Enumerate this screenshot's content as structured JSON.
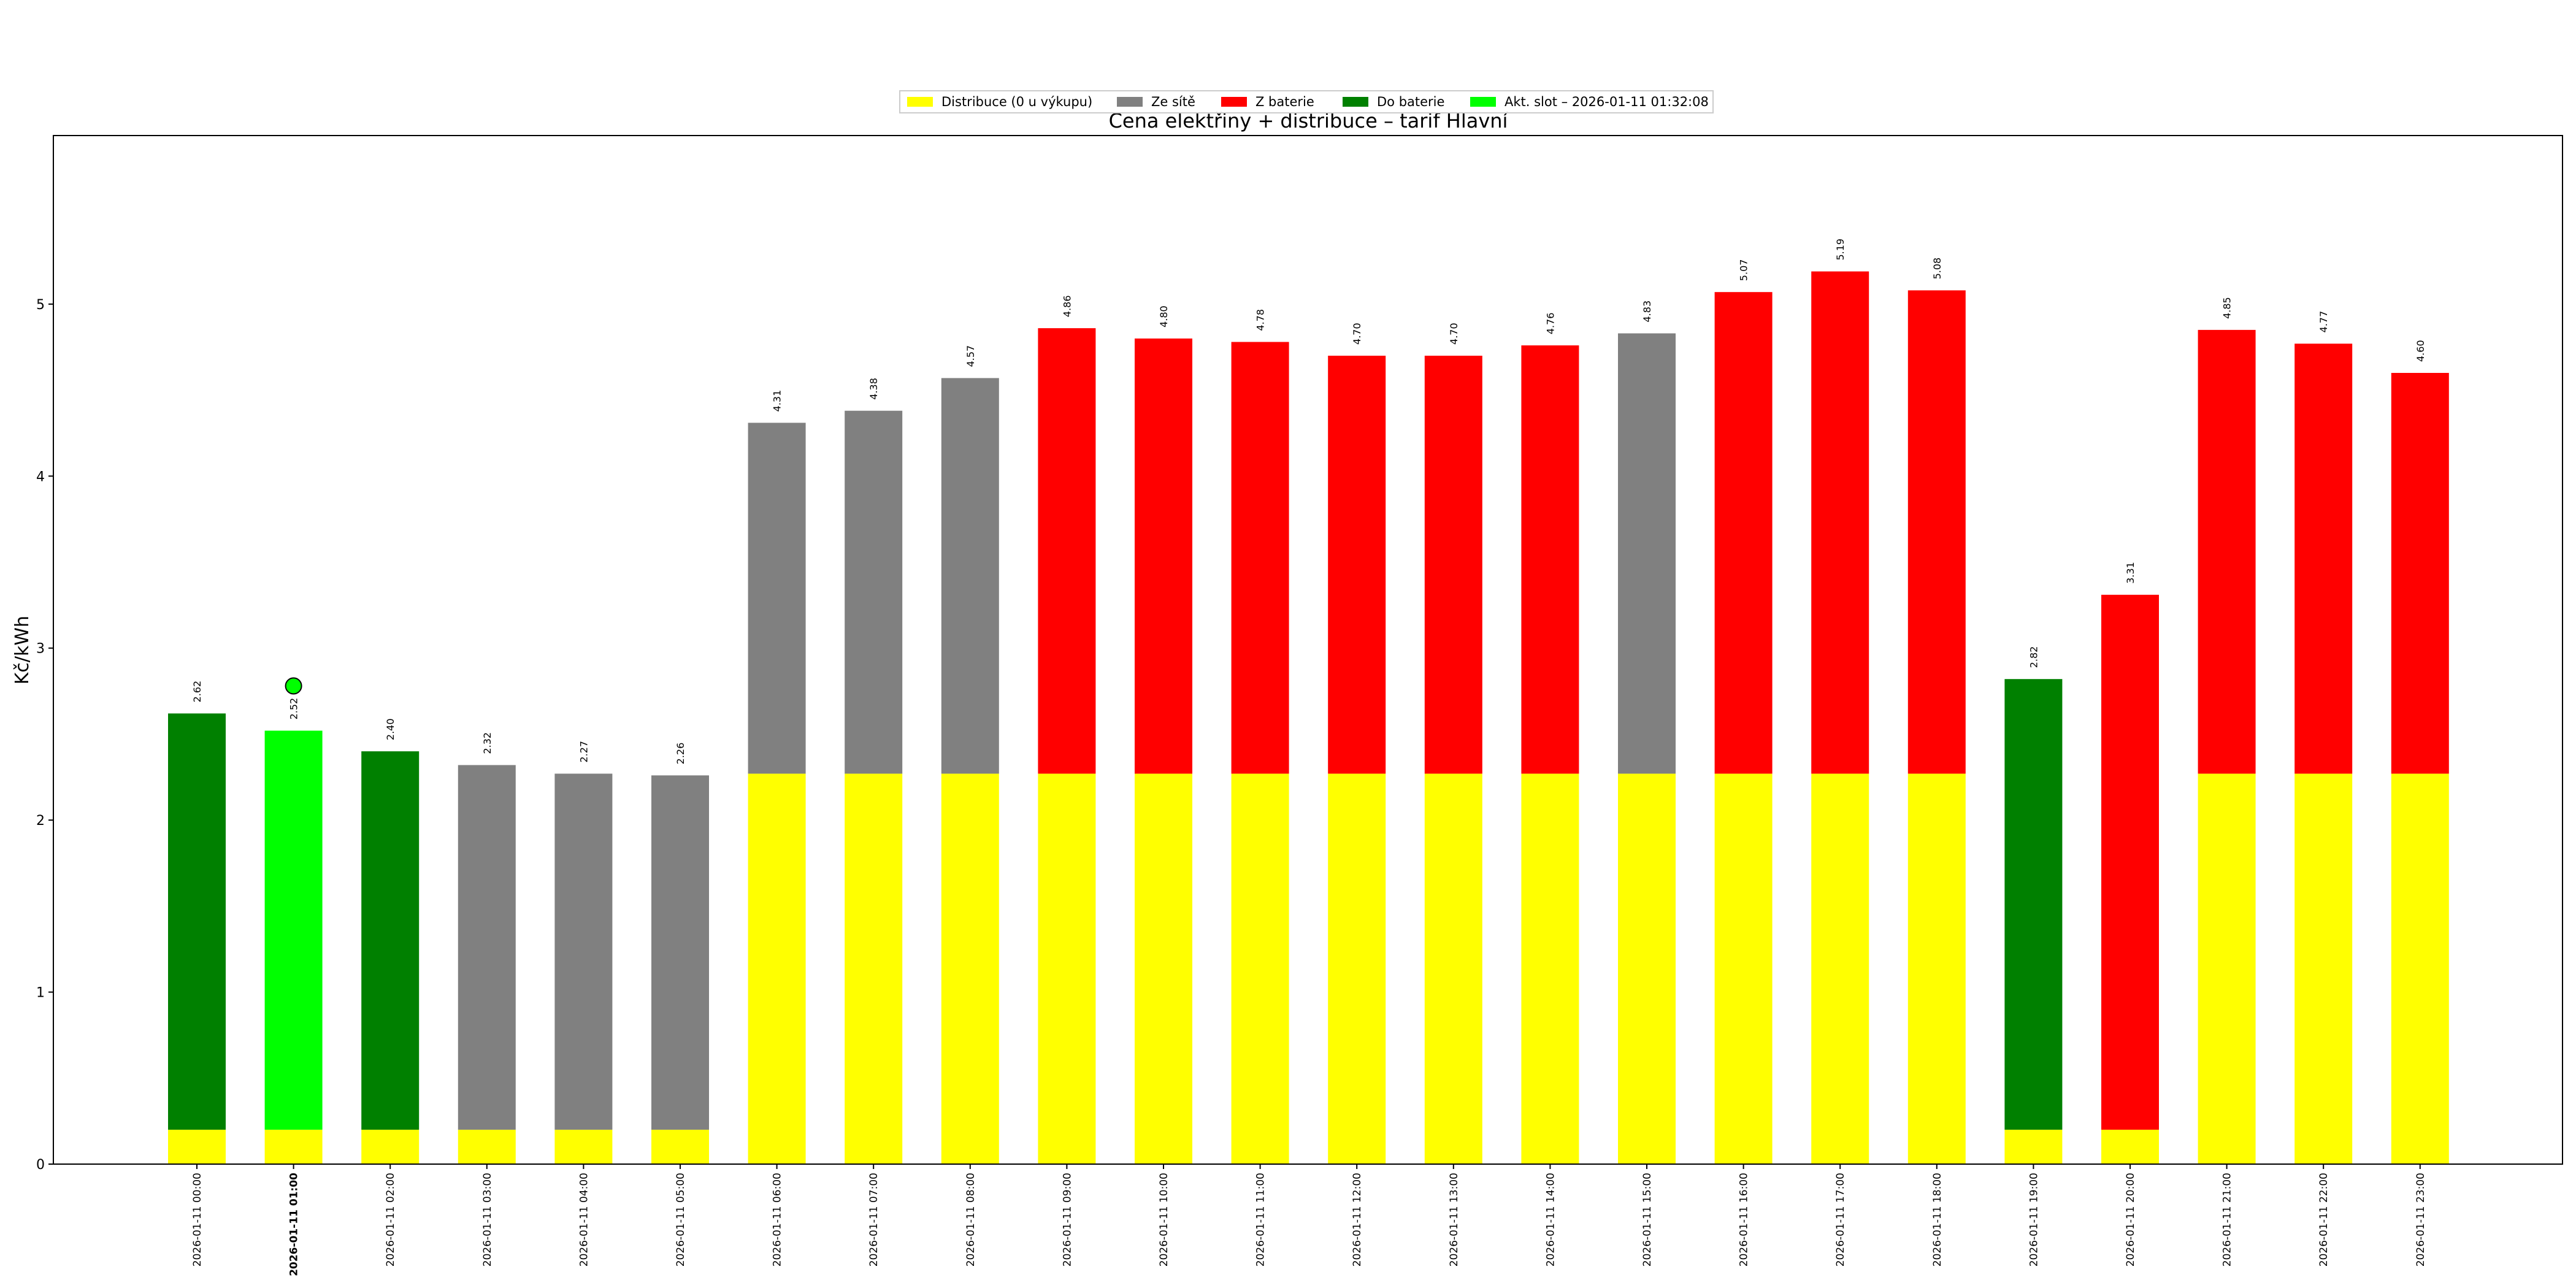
{
  "chart_data": {
    "type": "bar",
    "title": "Cena elektřiny + distribuce – tarif Hlavní",
    "xlabel": "",
    "ylabel": "Kč/kWh",
    "ylim": [
      0,
      5.98
    ],
    "yticks": [
      0,
      1,
      2,
      3,
      4,
      5
    ],
    "grid": false,
    "legend_position": "top-center",
    "colors": {
      "distribuce": "#ffff00",
      "ze_site": "#808080",
      "z_baterie": "#ff0000",
      "do_baterie": "#008000",
      "akt_slot": "#00ff00"
    },
    "legend": [
      {
        "key": "distribuce",
        "label": "Distribuce (0 u výkupu)"
      },
      {
        "key": "ze_site",
        "label": "Ze sítě"
      },
      {
        "key": "z_baterie",
        "label": "Z baterie"
      },
      {
        "key": "do_baterie",
        "label": "Do baterie"
      },
      {
        "key": "akt_slot",
        "label": "Akt. slot – 2026-01-11 01:32:08"
      }
    ],
    "current_slot_index": 1,
    "categories": [
      "2026-01-11 00:00",
      "2026-01-11 01:00",
      "2026-01-11 02:00",
      "2026-01-11 03:00",
      "2026-01-11 04:00",
      "2026-01-11 05:00",
      "2026-01-11 06:00",
      "2026-01-11 07:00",
      "2026-01-11 08:00",
      "2026-01-11 09:00",
      "2026-01-11 10:00",
      "2026-01-11 11:00",
      "2026-01-11 12:00",
      "2026-01-11 13:00",
      "2026-01-11 14:00",
      "2026-01-11 15:00",
      "2026-01-11 16:00",
      "2026-01-11 17:00",
      "2026-01-11 18:00",
      "2026-01-11 19:00",
      "2026-01-11 20:00",
      "2026-01-11 21:00",
      "2026-01-11 22:00",
      "2026-01-11 23:00"
    ],
    "distribution": [
      0.2,
      0.2,
      0.2,
      0.2,
      0.2,
      0.2,
      2.27,
      2.27,
      2.27,
      2.27,
      2.27,
      2.27,
      2.27,
      2.27,
      2.27,
      2.27,
      2.27,
      2.27,
      2.27,
      0.2,
      0.2,
      2.27,
      2.27,
      2.27
    ],
    "totals": [
      2.62,
      2.52,
      2.4,
      2.32,
      2.27,
      2.26,
      4.31,
      4.38,
      4.57,
      4.86,
      4.8,
      4.78,
      4.7,
      4.7,
      4.76,
      4.83,
      5.07,
      5.19,
      5.08,
      2.82,
      3.31,
      4.85,
      4.77,
      4.6
    ],
    "total_labels": [
      "2.62",
      "2.52",
      "2.40",
      "2.32",
      "2.27",
      "2.26",
      "4.31",
      "4.38",
      "4.57",
      "4.86",
      "4.80",
      "4.78",
      "4.70",
      "4.70",
      "4.76",
      "4.83",
      "5.07",
      "5.19",
      "5.08",
      "2.82",
      "3.31",
      "4.85",
      "4.77",
      "4.60"
    ],
    "modes": [
      "do_baterie",
      "akt_slot",
      "do_baterie",
      "ze_site",
      "ze_site",
      "ze_site",
      "ze_site",
      "ze_site",
      "ze_site",
      "z_baterie",
      "z_baterie",
      "z_baterie",
      "z_baterie",
      "z_baterie",
      "z_baterie",
      "ze_site",
      "z_baterie",
      "z_baterie",
      "z_baterie",
      "do_baterie",
      "z_baterie",
      "z_baterie",
      "z_baterie",
      "z_baterie"
    ],
    "current_marker_value": 2.78
  }
}
